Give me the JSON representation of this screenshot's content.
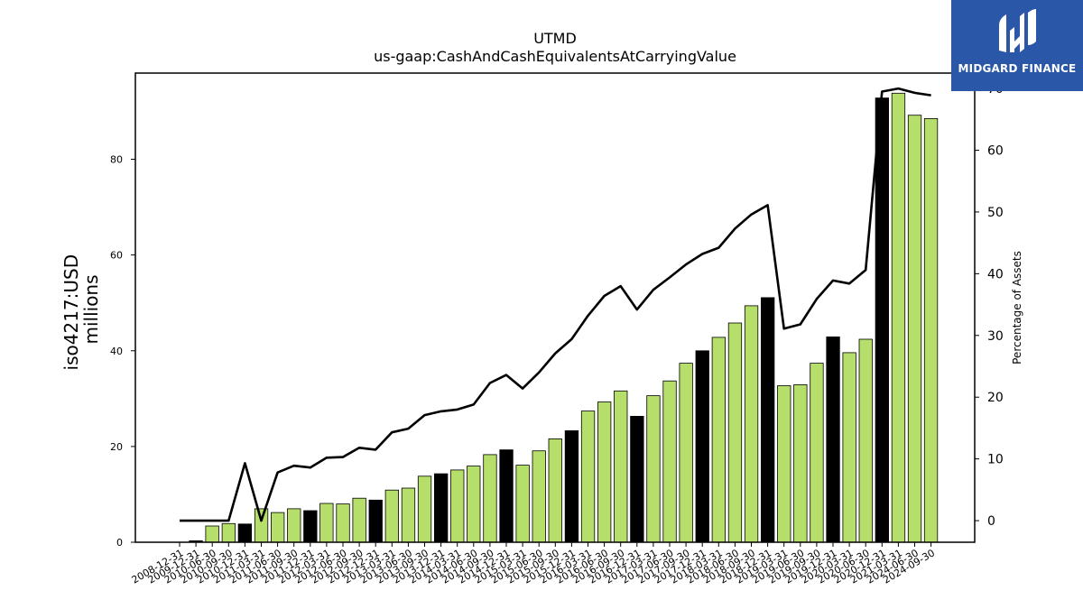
{
  "brand": {
    "name": "MIDGARD FINANCE",
    "logo_icon": "midgard-logo-icon",
    "background": "#2a57a8"
  },
  "chart_data": {
    "type": "bar",
    "title": "UTMD",
    "subtitle": "us-gaap:CashAndCashEquivalentsAtCarryingValue",
    "ylabel": "iso4217:USD millions",
    "y2label": "Percentage of Assets",
    "ylim": [
      0,
      98
    ],
    "y2lim": [
      -3.5,
      72.5
    ],
    "yticks": [
      0,
      20,
      40,
      60,
      80
    ],
    "y2ticks": [
      0,
      10,
      20,
      30,
      40,
      50,
      60,
      70
    ],
    "grid": false,
    "bar_colors": {
      "quarter": "#b5de6a",
      "year_end": "#000000",
      "edge": "#000000"
    },
    "line_color": "#000000",
    "categories": [
      "2008-12-31",
      "2009-12-31",
      "2010-06-30",
      "2010-09-30",
      "2010-12-31",
      "2011-03-31",
      "2011-06-30",
      "2011-09-30",
      "2011-12-31",
      "2012-03-31",
      "2012-06-30",
      "2012-09-30",
      "2012-12-31",
      "2013-03-31",
      "2013-06-30",
      "2013-09-30",
      "2013-12-31",
      "2014-03-31",
      "2014-06-30",
      "2014-09-30",
      "2014-12-31",
      "2015-03-31",
      "2015-06-30",
      "2015-09-30",
      "2015-12-31",
      "2016-03-31",
      "2016-06-30",
      "2016-09-30",
      "2016-12-31",
      "2017-03-31",
      "2017-06-30",
      "2017-09-30",
      "2017-12-31",
      "2018-03-31",
      "2018-06-30",
      "2018-09-30",
      "2018-12-31",
      "2019-03-31",
      "2019-06-30",
      "2019-09-30",
      "2019-12-31",
      "2020-03-31",
      "2020-06-30",
      "2020-12-31",
      "2021-03-31",
      "2024-06-30",
      "2024-09-30"
    ],
    "bar_values": [
      null,
      0.3,
      3.4,
      3.9,
      3.8,
      7.0,
      6.2,
      7.0,
      6.6,
      8.1,
      8.0,
      9.2,
      8.8,
      10.9,
      11.3,
      13.8,
      14.3,
      15.1,
      15.9,
      18.3,
      19.3,
      16.1,
      19.1,
      21.6,
      23.3,
      27.4,
      29.3,
      31.6,
      26.3,
      30.6,
      33.7,
      37.4,
      40.0,
      42.8,
      45.8,
      49.4,
      51.1,
      32.7,
      32.9,
      37.4,
      42.9,
      39.6,
      42.4,
      92.8,
      93.8,
      89.2,
      88.5
    ],
    "year_end": [
      false,
      true,
      false,
      false,
      true,
      false,
      false,
      false,
      true,
      false,
      false,
      false,
      true,
      false,
      false,
      false,
      true,
      false,
      false,
      false,
      true,
      false,
      false,
      false,
      true,
      false,
      false,
      false,
      true,
      false,
      false,
      false,
      true,
      false,
      false,
      false,
      true,
      false,
      false,
      false,
      true,
      false,
      false,
      true,
      false,
      false,
      false
    ],
    "line_values": [
      0,
      0,
      0,
      0,
      9.3,
      0,
      7.8,
      8.9,
      8.6,
      10.2,
      10.3,
      11.8,
      11.5,
      14.3,
      14.9,
      17.1,
      17.7,
      18.0,
      18.8,
      22.3,
      23.6,
      21.4,
      24.0,
      27.1,
      29.4,
      33.2,
      36.4,
      38.0,
      34.2,
      37.4,
      39.4,
      41.5,
      43.2,
      44.2,
      47.3,
      49.6,
      51.1,
      31.1,
      31.8,
      35.9,
      38.9,
      38.4,
      40.6,
      69.5,
      70.0,
      69.3,
      68.9
    ]
  }
}
